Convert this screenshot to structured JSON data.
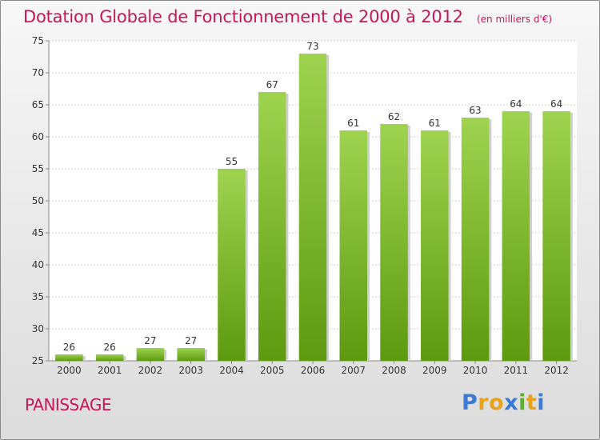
{
  "header": {
    "title": "Dotation Globale de Fonctionnement de 2000 à 2012",
    "unit": "(en milliers d'€)"
  },
  "footer": {
    "commune": "PANISSAGE",
    "logo_text": "Proxiti"
  },
  "colors": {
    "title": "#c8155a",
    "bar_top": "#9fd34f",
    "bar_bottom": "#5d9a10",
    "axis_text": "#333333",
    "logo_letters": [
      "#3a7bd5",
      "#e8a21c",
      "#e8a21c",
      "#3a7bd5",
      "#5fae2f",
      "#e8a21c",
      "#3a7bd5"
    ]
  },
  "chart_data": {
    "type": "bar",
    "title": "Dotation Globale de Fonctionnement de 2000 à 2012",
    "categories": [
      "2000",
      "2001",
      "2002",
      "2003",
      "2004",
      "2005",
      "2006",
      "2007",
      "2008",
      "2009",
      "2010",
      "2011",
      "2012"
    ],
    "values": [
      26,
      26,
      27,
      27,
      55,
      67,
      73,
      61,
      62,
      61,
      63,
      64,
      64
    ],
    "ylim": [
      25,
      75
    ],
    "yticks": [
      25,
      30,
      35,
      40,
      45,
      50,
      55,
      60,
      65,
      70,
      75
    ],
    "grid": true,
    "data_labels": true
  }
}
